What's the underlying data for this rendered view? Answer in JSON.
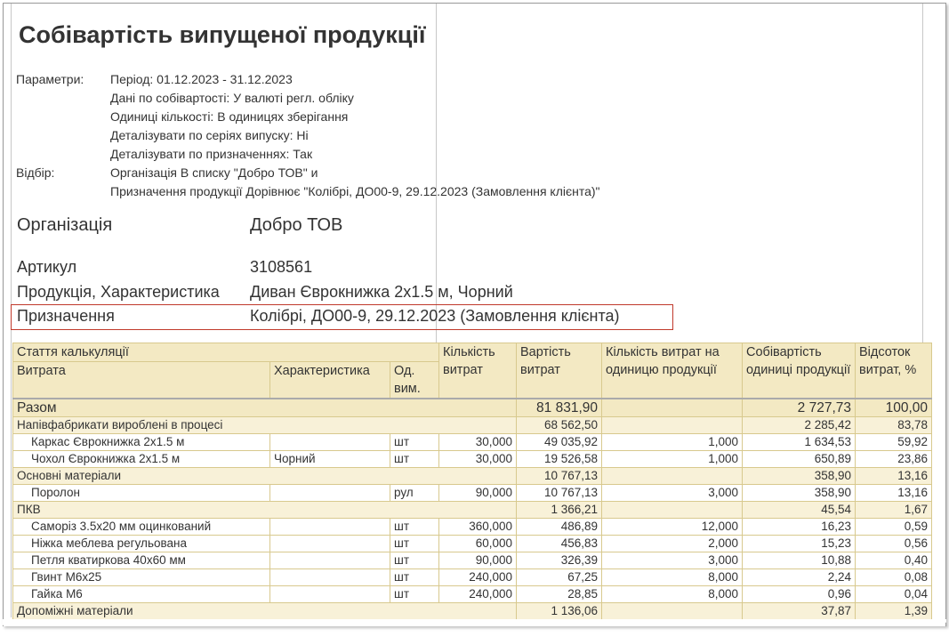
{
  "report": {
    "title": "Собівартість випущеної продукції",
    "parameters_label": "Параметри:",
    "parameters": [
      "Період: 01.12.2023 - 31.12.2023",
      "Дані по собівартості: У валюті регл. обліку",
      "Одиниці кількості: В одиницях зберігання",
      "Деталізувати по серіях випуску: Ні",
      "Деталізувати по призначеннях: Так"
    ],
    "filter_label": "Відбір:",
    "filter": [
      "Організація В списку \"Добро ТОВ\" и",
      "Призначення продукції Дорівнює \"Колібрі, ДО00-9, 29.12.2023 (Замовлення клієнта)\""
    ]
  },
  "info": {
    "organization_label": "Організація",
    "organization": "Добро ТОВ",
    "article_label": "Артикул",
    "article": "3108561",
    "product_label": "Продукція, Характеристика",
    "product": "Диван Єврокнижка 2х1.5 м, Чорний",
    "purpose_label": "Призначення",
    "purpose": "Колібрі, ДО00-9, 29.12.2023 (Замовлення клієнта)"
  },
  "colors": {
    "header_bg": "#f3e9c3",
    "group_bg": "#f8f1d8",
    "border": "#d8c98e",
    "highlight": "#c0392b"
  },
  "table": {
    "headers": {
      "article": "Стаття калькуляції",
      "expense": "Витрата",
      "characteristic": "Характеристика",
      "unit": "Од. вим.",
      "qty": "Кількість витрат",
      "cost": "Вартість витрат",
      "qty_per_unit": "Кількість витрат на одиницю продукції",
      "unit_cost": "Собівартість одиниці продукції",
      "percent": "Відсоток витрат, %"
    },
    "rows": [
      {
        "type": "total",
        "name": "Разом",
        "char": "",
        "unit": "",
        "qty": "",
        "cost": "81 831,90",
        "per": "",
        "ucost": "2 727,73",
        "pct": "100,00"
      },
      {
        "type": "group",
        "name": "Напівфабрикати вироблені в процесі",
        "char": "",
        "unit": "",
        "qty": "",
        "cost": "68 562,50",
        "per": "",
        "ucost": "2 285,42",
        "pct": "83,78"
      },
      {
        "type": "item",
        "name": "Каркас Єврокнижка 2х1.5 м",
        "char": "",
        "unit": "шт",
        "qty": "30,000",
        "cost": "49 035,92",
        "per": "1,000",
        "ucost": "1 634,53",
        "pct": "59,92"
      },
      {
        "type": "item",
        "name": "Чохол Єврокнижка 2х1.5 м",
        "char": "Чорний",
        "unit": "шт",
        "qty": "30,000",
        "cost": "19 526,58",
        "per": "1,000",
        "ucost": "650,89",
        "pct": "23,86"
      },
      {
        "type": "group",
        "name": " Основні матеріали",
        "char": "",
        "unit": "",
        "qty": "",
        "cost": "10 767,13",
        "per": "",
        "ucost": "358,90",
        "pct": "13,16"
      },
      {
        "type": "item",
        "name": "Поролон",
        "char": "",
        "unit": "рул",
        "qty": "90,000",
        "cost": "10 767,13",
        "per": "3,000",
        "ucost": "358,90",
        "pct": "13,16"
      },
      {
        "type": "group",
        "name": "ПКВ",
        "char": "",
        "unit": "",
        "qty": "",
        "cost": "1 366,21",
        "per": "",
        "ucost": "45,54",
        "pct": "1,67"
      },
      {
        "type": "item",
        "name": "Саморіз 3.5х20 мм оцинкований",
        "char": "",
        "unit": "шт",
        "qty": "360,000",
        "cost": "486,89",
        "per": "12,000",
        "ucost": "16,23",
        "pct": "0,59"
      },
      {
        "type": "item",
        "name": "Ніжка меблева регульована",
        "char": "",
        "unit": "шт",
        "qty": "60,000",
        "cost": "456,83",
        "per": "2,000",
        "ucost": "15,23",
        "pct": "0,56"
      },
      {
        "type": "item",
        "name": "Петля кватиркова 40х60 мм",
        "char": "",
        "unit": "шт",
        "qty": "90,000",
        "cost": "326,39",
        "per": "3,000",
        "ucost": "10,88",
        "pct": "0,40"
      },
      {
        "type": "item",
        "name": "Гвинт М6х25",
        "char": "",
        "unit": "шт",
        "qty": "240,000",
        "cost": "67,25",
        "per": "8,000",
        "ucost": "2,24",
        "pct": "0,08"
      },
      {
        "type": "item",
        "name": "Гайка М6",
        "char": "",
        "unit": "шт",
        "qty": "240,000",
        "cost": "28,85",
        "per": "8,000",
        "ucost": "0,96",
        "pct": "0,04"
      },
      {
        "type": "group",
        "name": "Допоміжні матеріали",
        "char": "",
        "unit": "",
        "qty": "",
        "cost": "1 136,06",
        "per": "",
        "ucost": "37,87",
        "pct": "1,39"
      }
    ]
  }
}
